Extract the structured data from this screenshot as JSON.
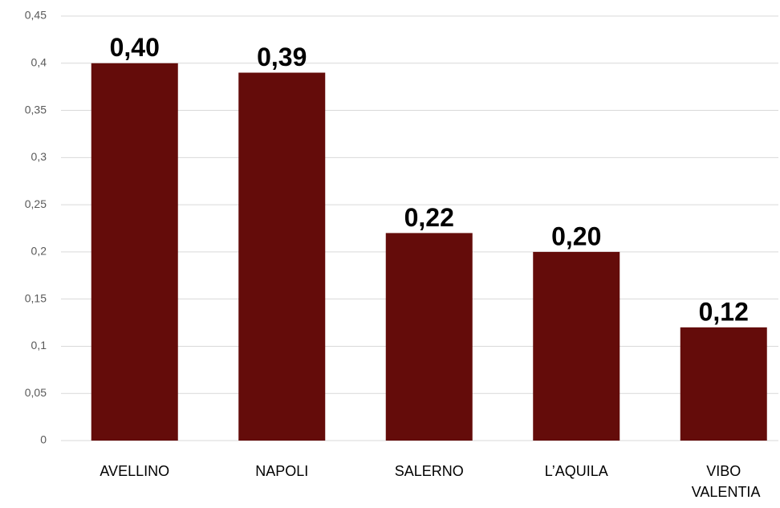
{
  "chart_data": {
    "type": "bar",
    "categories": [
      "AVELLINO",
      "NAPOLI",
      "SALERNO",
      "L’AQUILA",
      "VIBO VALENTIA"
    ],
    "values": [
      0.4,
      0.39,
      0.22,
      0.2,
      0.12
    ],
    "value_labels": [
      "0,40",
      "0,39",
      "0,22",
      "0,20",
      "0,12"
    ],
    "color": "#640c0a",
    "ylim": [
      0,
      0.45
    ],
    "yticks": [
      0,
      {
        "value": 0.05,
        "label": "0,05"
      },
      {
        "value": 0.1,
        "label": "0,1"
      },
      {
        "value": 0.15,
        "label": "0,15"
      },
      {
        "value": 0.2,
        "label": "0,2"
      },
      {
        "value": 0.25,
        "label": "0,25"
      },
      {
        "value": 0.3,
        "label": "0,3"
      },
      {
        "value": 0.35,
        "label": "0,35"
      },
      {
        "value": 0.4,
        "label": "0,4"
      },
      {
        "value": 0.45,
        "label": "0,45"
      }
    ],
    "grid": true
  }
}
